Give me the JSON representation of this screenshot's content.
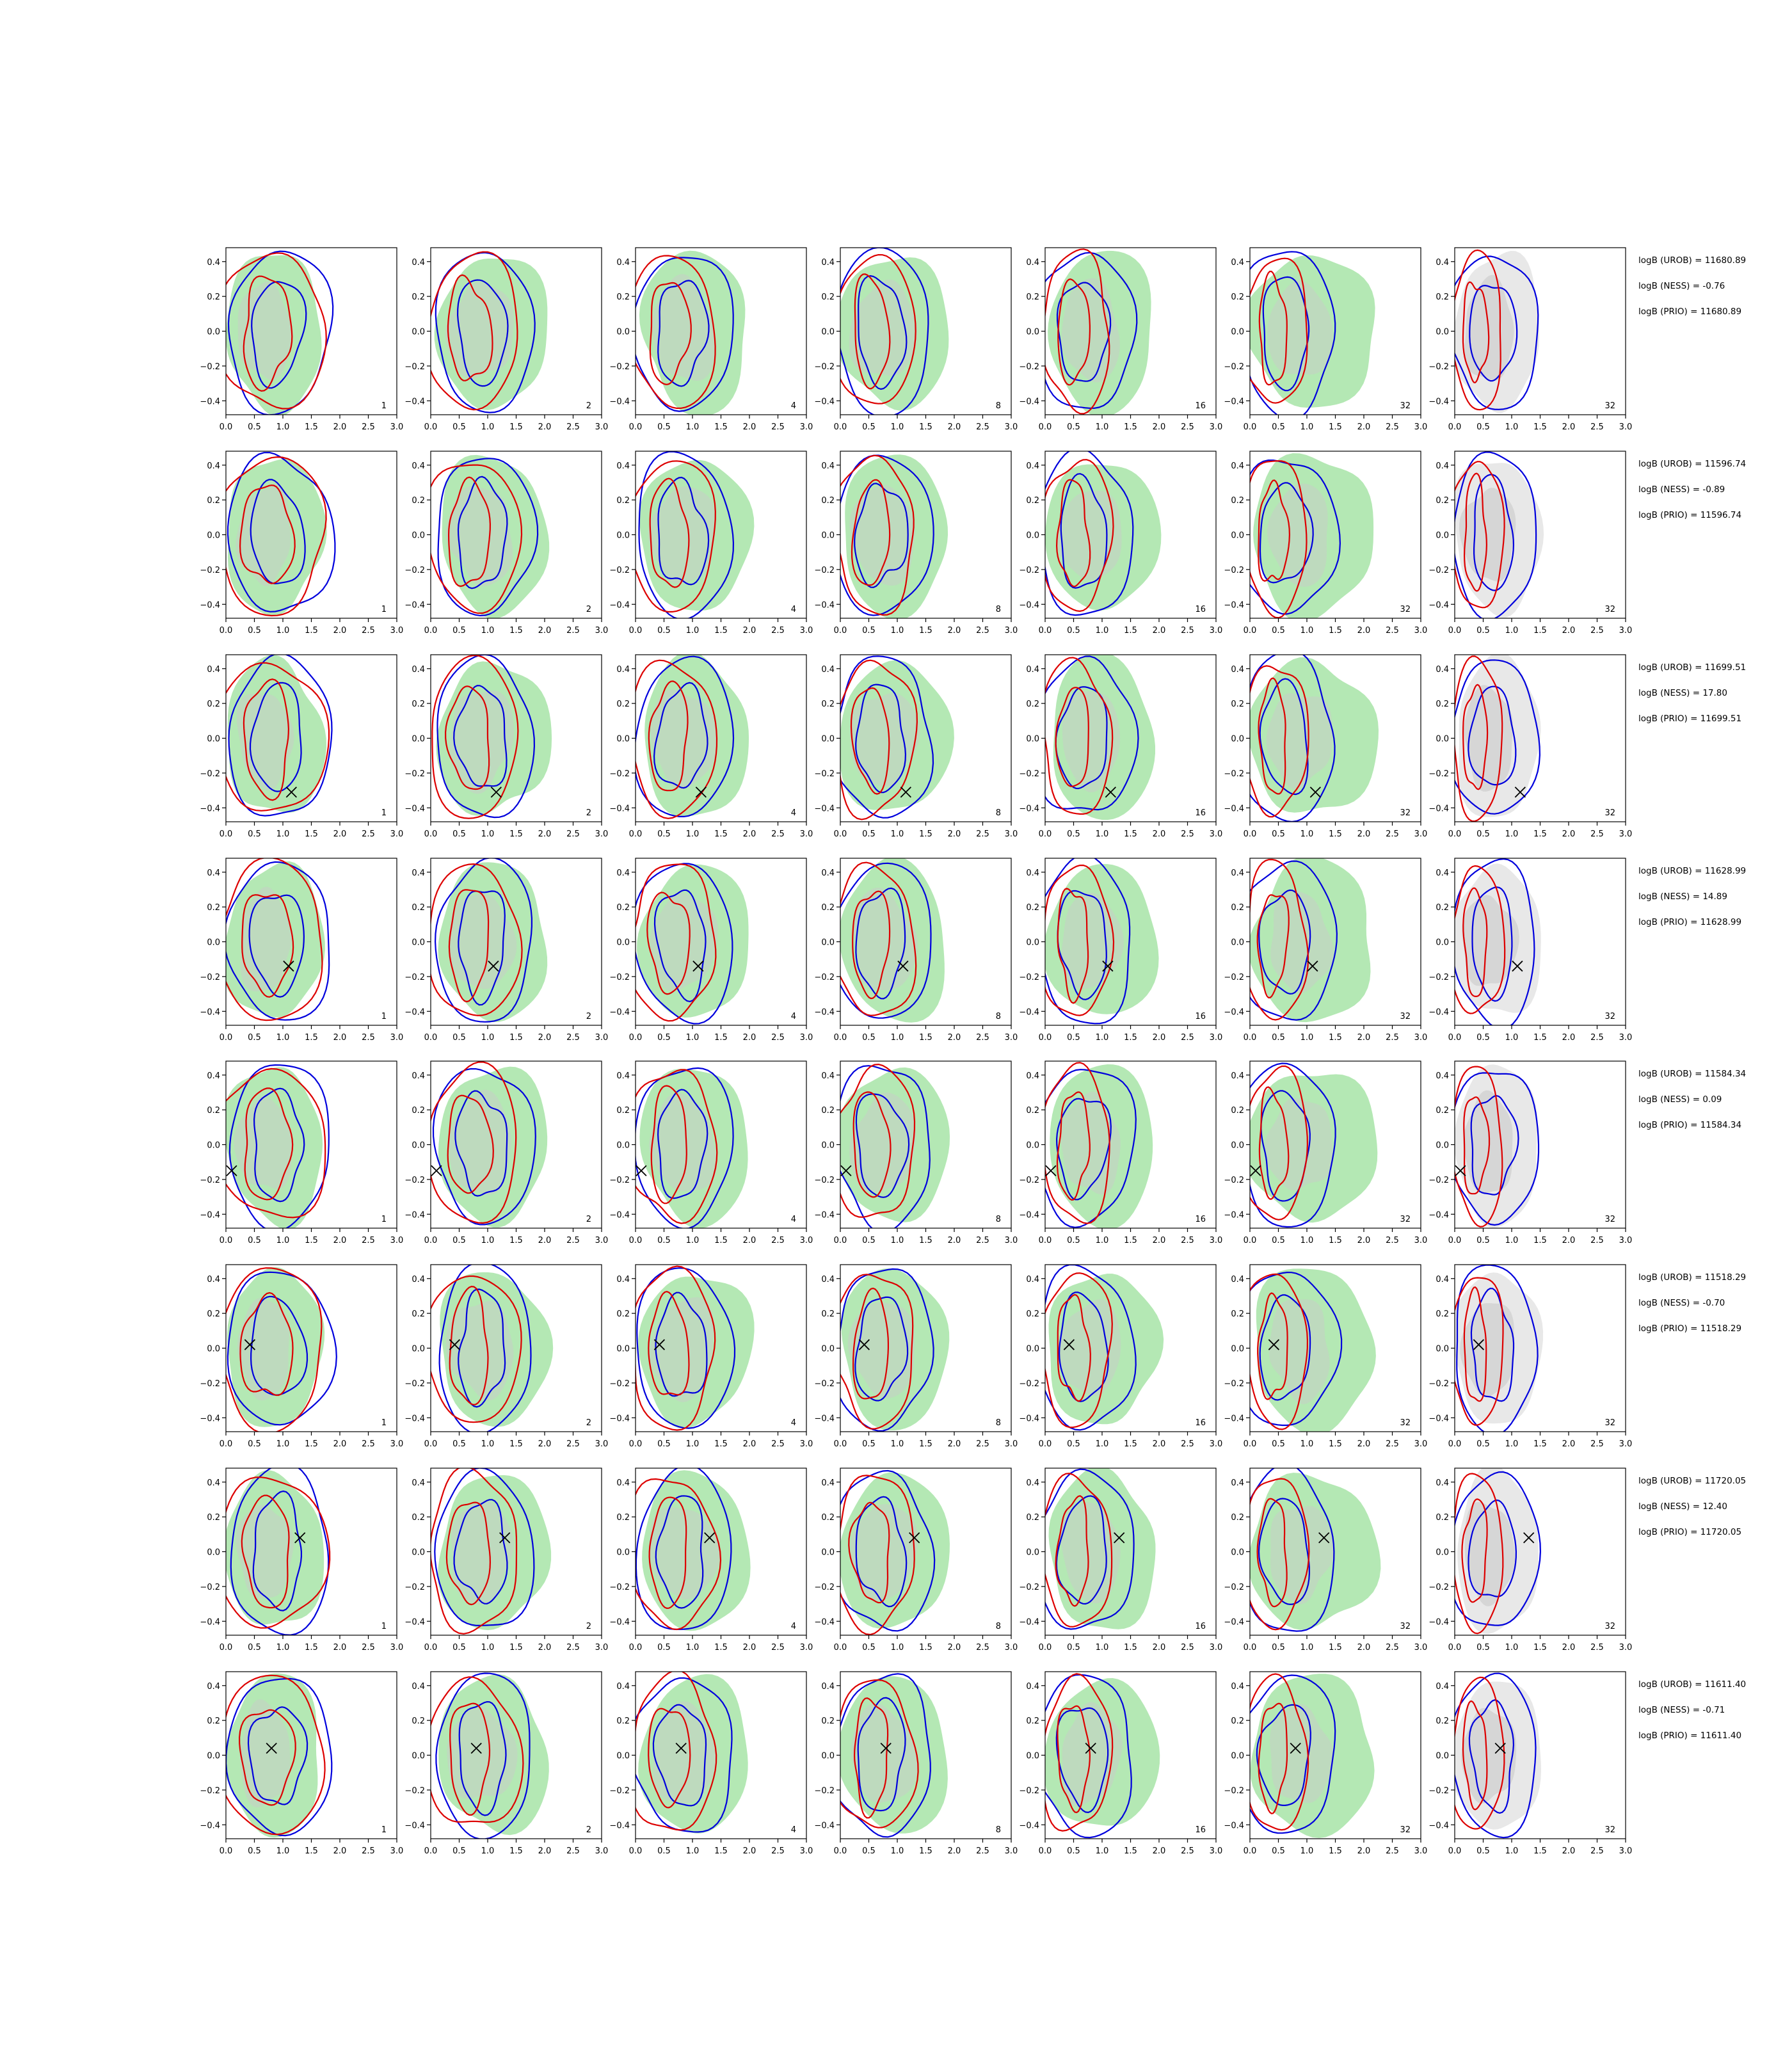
{
  "figure": {
    "colors": {
      "green_fill": "#b4e8b4",
      "grey_fill": "#d6d6d6",
      "grey_fill_light": "#e8e8e8",
      "blue_line": "#0000dd",
      "red_line": "#dd0000",
      "marker": "#000000",
      "frame": "#000000"
    }
  },
  "chart_data": {
    "type": "contour-grid",
    "title": "",
    "xlabel": "",
    "ylabel": "",
    "xlim": [
      0.0,
      3.0
    ],
    "ylim": [
      -0.48,
      0.48
    ],
    "x_tick_labels": [
      "0.0",
      "0.5",
      "1.0",
      "1.5",
      "2.0",
      "2.5",
      "3.0"
    ],
    "y_tick_labels": [
      "0.4",
      "0.2",
      "0.0",
      "−0.2",
      "−0.4"
    ],
    "x_ticks": [
      0,
      0.5,
      1,
      1.5,
      2,
      2.5,
      3
    ],
    "y_ticks": [
      0.4,
      0.2,
      0.0,
      -0.2,
      -0.4
    ],
    "grid": false,
    "legend": "none",
    "columns": [
      "1",
      "2",
      "4",
      "8",
      "16",
      "32",
      "32"
    ],
    "column_fill": [
      "green",
      "green",
      "green",
      "green",
      "green",
      "green",
      "grey"
    ],
    "rows": [
      {
        "annotations": [
          "logB (UROB) = 11680.89",
          "logB (NESS) = -0.76",
          "logB (PRIO) = 11680.89"
        ],
        "marker": null
      },
      {
        "annotations": [
          "logB (UROB) = 11596.74",
          "logB (NESS) = -0.89",
          "logB (PRIO) = 11596.74"
        ],
        "marker": null
      },
      {
        "annotations": [
          "logB (UROB) = 11699.51",
          "logB (NESS) = 17.80",
          "logB (PRIO) = 11699.51"
        ],
        "marker": {
          "x": 1.15,
          "y": -0.31
        }
      },
      {
        "annotations": [
          "logB (UROB) = 11628.99",
          "logB (NESS) = 14.89",
          "logB (PRIO) = 11628.99"
        ],
        "marker": {
          "x": 1.1,
          "y": -0.14
        }
      },
      {
        "annotations": [
          "logB (UROB) = 11584.34",
          "logB (NESS) = 0.09",
          "logB (PRIO) = 11584.34"
        ],
        "marker": {
          "x": 0.1,
          "y": -0.15
        }
      },
      {
        "annotations": [
          "logB (UROB) = 11518.29",
          "logB (NESS) = -0.70",
          "logB (PRIO) = 11518.29"
        ],
        "marker": {
          "x": 0.42,
          "y": 0.02
        }
      },
      {
        "annotations": [
          "logB (UROB) = 11720.05",
          "logB (NESS) = 12.40",
          "logB (PRIO) = 11720.05"
        ],
        "marker": {
          "x": 1.3,
          "y": 0.08
        }
      },
      {
        "annotations": [
          "logB (UROB) = 11611.40",
          "logB (NESS) = -0.71",
          "logB (PRIO) = 11611.40"
        ],
        "marker": {
          "x": 0.8,
          "y": 0.04
        }
      }
    ]
  }
}
